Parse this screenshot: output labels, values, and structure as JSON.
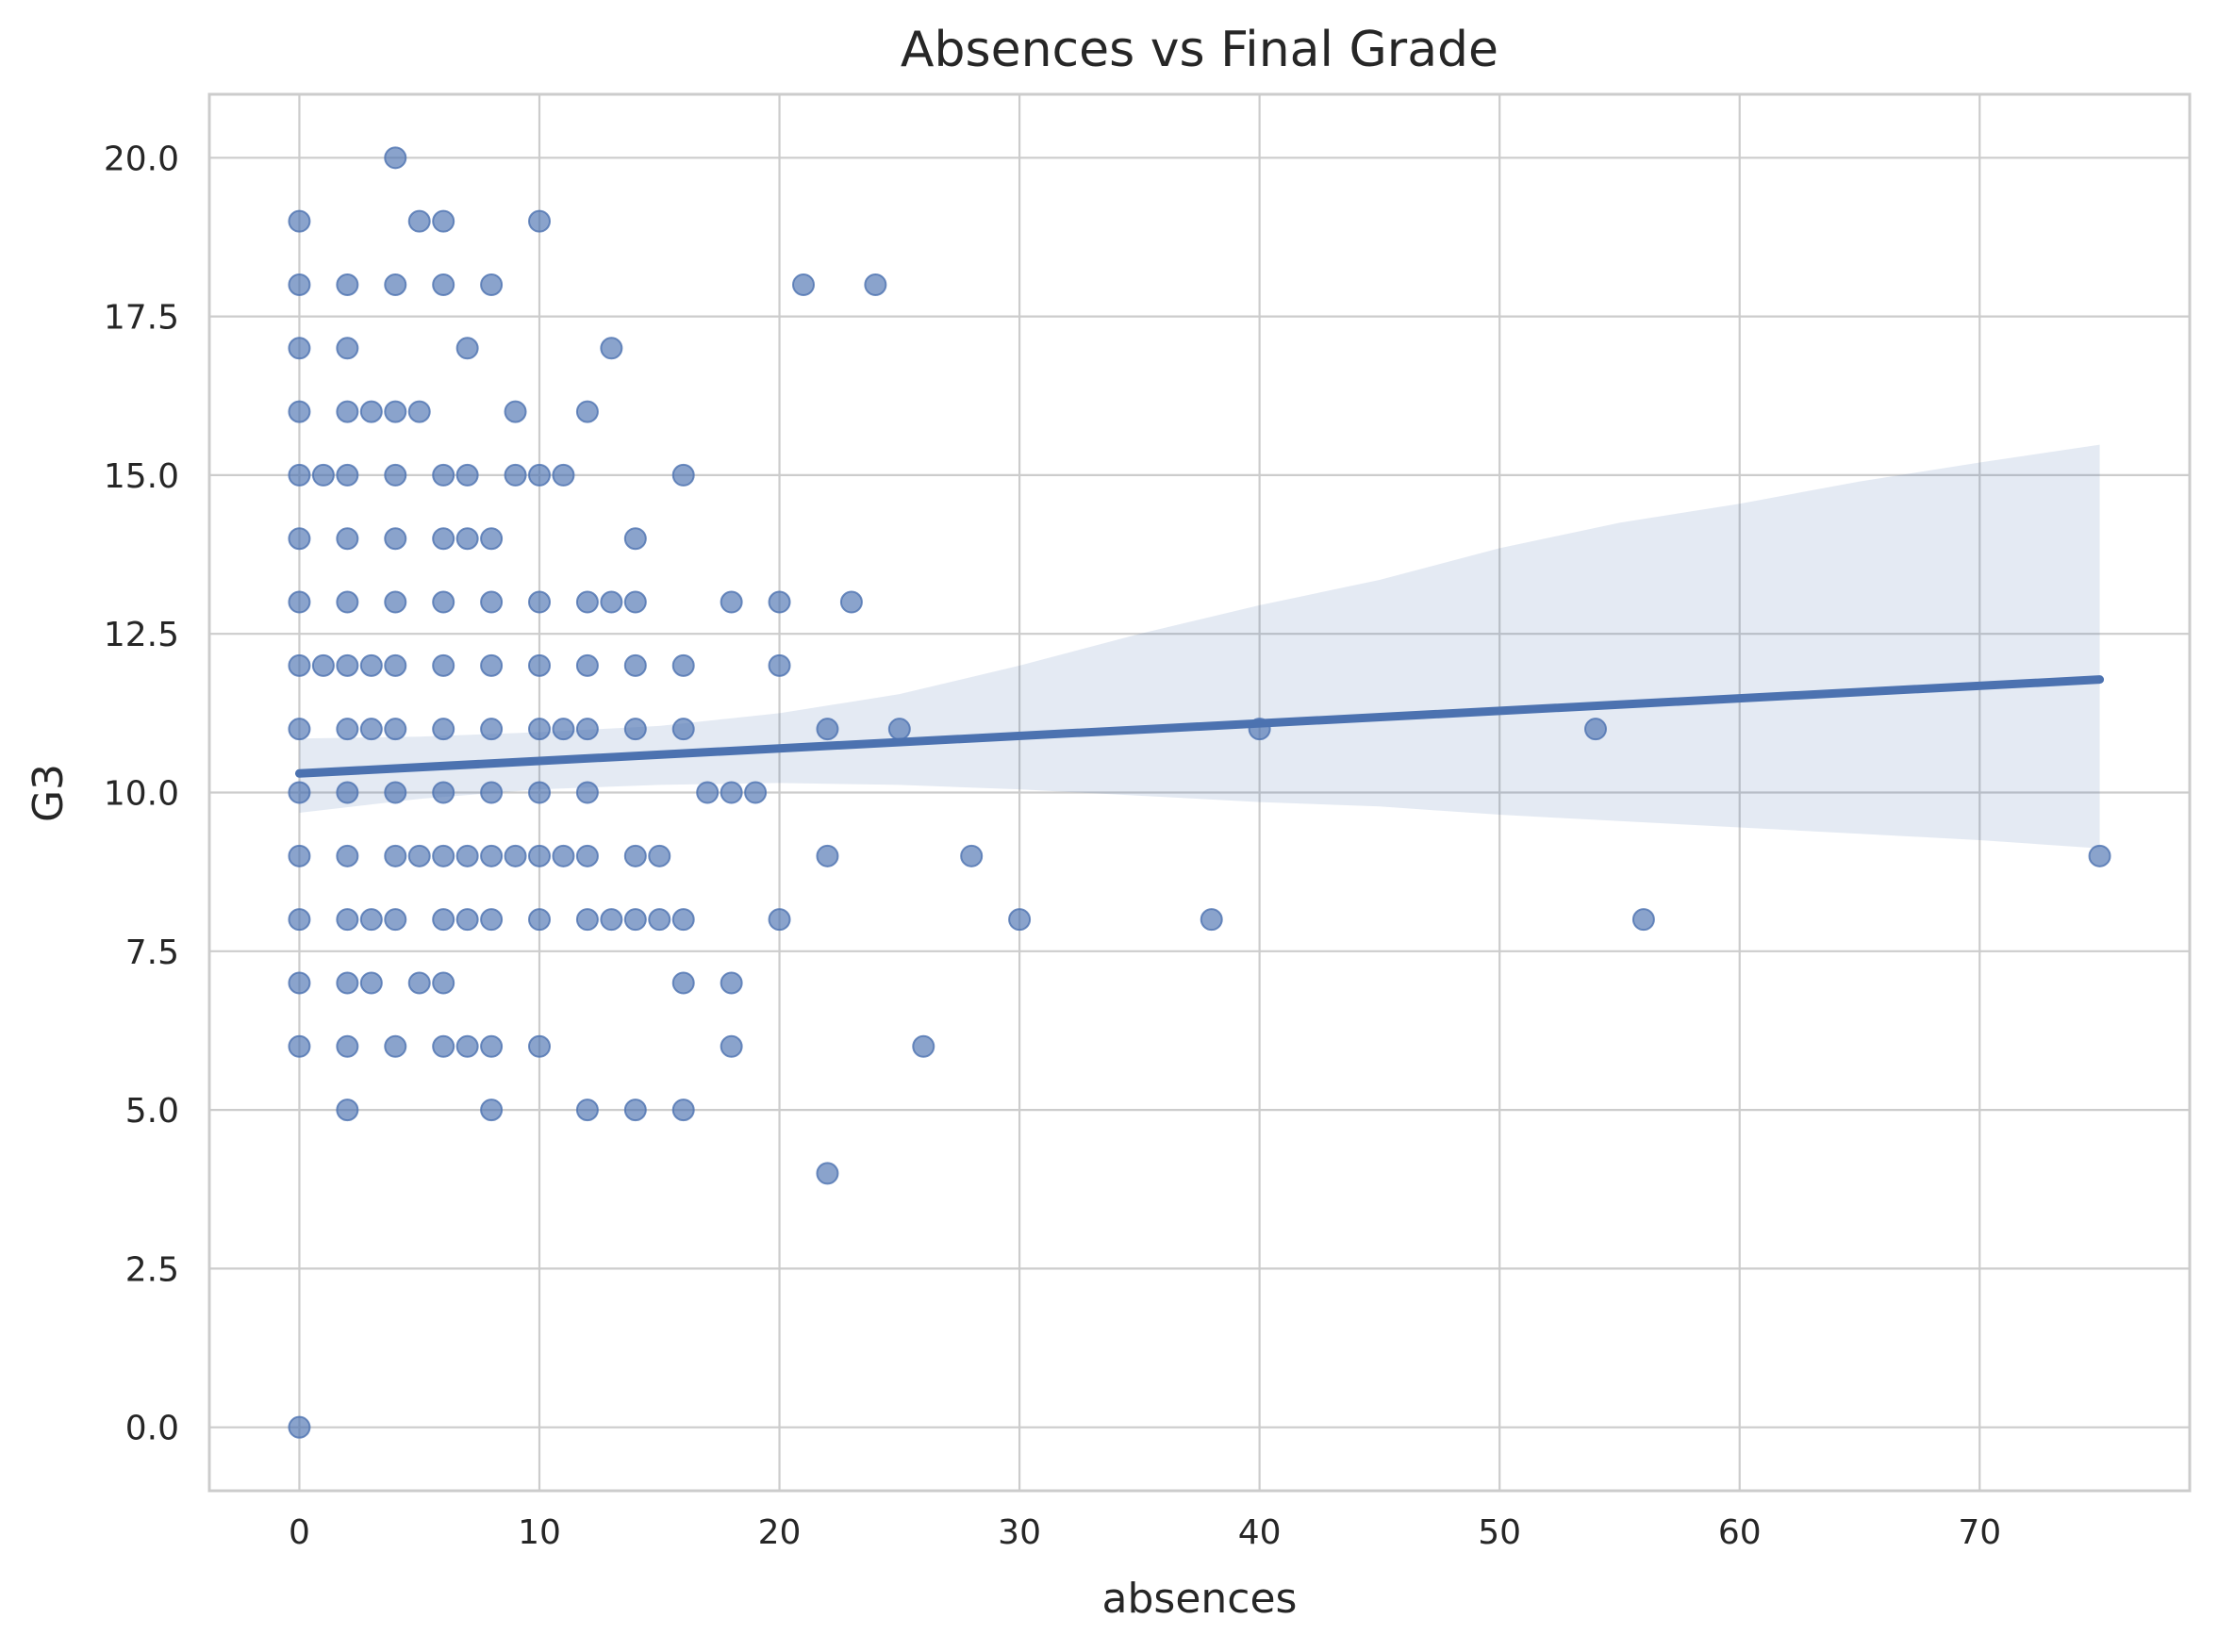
{
  "chart_data": {
    "type": "scatter",
    "title": "Absences vs Final Grade",
    "xlabel": "absences",
    "ylabel": "G3",
    "xlim": [
      -3.75,
      78.75
    ],
    "ylim": [
      -1.0,
      21.0
    ],
    "xticks": [
      0,
      10,
      20,
      30,
      40,
      50,
      60,
      70
    ],
    "xtick_labels": [
      "0",
      "10",
      "20",
      "30",
      "40",
      "50",
      "60",
      "70"
    ],
    "yticks": [
      0,
      2.5,
      5,
      7.5,
      10,
      12.5,
      15,
      17.5,
      20
    ],
    "ytick_labels": [
      "0.0",
      "2.5",
      "5.0",
      "7.5",
      "10.0",
      "12.5",
      "15.0",
      "17.5",
      "20.0"
    ],
    "grid": true,
    "colors": {
      "point": "#4c72b0",
      "line": "#4c72b0",
      "ci_band": "#4c72b0",
      "grid": "#cccccc",
      "background": "#ffffff"
    },
    "points": [
      [
        0,
        0
      ],
      [
        0,
        6
      ],
      [
        0,
        7
      ],
      [
        0,
        8
      ],
      [
        0,
        9
      ],
      [
        0,
        10
      ],
      [
        0,
        11
      ],
      [
        0,
        12
      ],
      [
        0,
        13
      ],
      [
        0,
        14
      ],
      [
        0,
        15
      ],
      [
        0,
        16
      ],
      [
        0,
        17
      ],
      [
        0,
        18
      ],
      [
        0,
        19
      ],
      [
        1,
        12
      ],
      [
        1,
        15
      ],
      [
        2,
        5
      ],
      [
        2,
        6
      ],
      [
        2,
        7
      ],
      [
        2,
        8
      ],
      [
        2,
        9
      ],
      [
        2,
        10
      ],
      [
        2,
        11
      ],
      [
        2,
        12
      ],
      [
        2,
        13
      ],
      [
        2,
        14
      ],
      [
        2,
        15
      ],
      [
        2,
        16
      ],
      [
        2,
        17
      ],
      [
        2,
        18
      ],
      [
        3,
        7
      ],
      [
        3,
        8
      ],
      [
        3,
        11
      ],
      [
        3,
        12
      ],
      [
        3,
        16
      ],
      [
        4,
        6
      ],
      [
        4,
        8
      ],
      [
        4,
        9
      ],
      [
        4,
        10
      ],
      [
        4,
        11
      ],
      [
        4,
        12
      ],
      [
        4,
        13
      ],
      [
        4,
        14
      ],
      [
        4,
        15
      ],
      [
        4,
        16
      ],
      [
        4,
        18
      ],
      [
        4,
        20
      ],
      [
        5,
        7
      ],
      [
        5,
        9
      ],
      [
        5,
        16
      ],
      [
        5,
        19
      ],
      [
        6,
        6
      ],
      [
        6,
        7
      ],
      [
        6,
        8
      ],
      [
        6,
        9
      ],
      [
        6,
        10
      ],
      [
        6,
        11
      ],
      [
        6,
        12
      ],
      [
        6,
        13
      ],
      [
        6,
        14
      ],
      [
        6,
        15
      ],
      [
        6,
        18
      ],
      [
        6,
        19
      ],
      [
        7,
        6
      ],
      [
        7,
        8
      ],
      [
        7,
        9
      ],
      [
        7,
        14
      ],
      [
        7,
        15
      ],
      [
        7,
        17
      ],
      [
        8,
        5
      ],
      [
        8,
        6
      ],
      [
        8,
        8
      ],
      [
        8,
        9
      ],
      [
        8,
        10
      ],
      [
        8,
        11
      ],
      [
        8,
        12
      ],
      [
        8,
        13
      ],
      [
        8,
        14
      ],
      [
        8,
        18
      ],
      [
        9,
        9
      ],
      [
        9,
        15
      ],
      [
        9,
        16
      ],
      [
        10,
        6
      ],
      [
        10,
        8
      ],
      [
        10,
        9
      ],
      [
        10,
        10
      ],
      [
        10,
        11
      ],
      [
        10,
        12
      ],
      [
        10,
        13
      ],
      [
        10,
        15
      ],
      [
        10,
        19
      ],
      [
        11,
        9
      ],
      [
        11,
        11
      ],
      [
        11,
        15
      ],
      [
        12,
        5
      ],
      [
        12,
        8
      ],
      [
        12,
        9
      ],
      [
        12,
        10
      ],
      [
        12,
        11
      ],
      [
        12,
        12
      ],
      [
        12,
        13
      ],
      [
        12,
        16
      ],
      [
        13,
        8
      ],
      [
        13,
        13
      ],
      [
        13,
        17
      ],
      [
        14,
        5
      ],
      [
        14,
        8
      ],
      [
        14,
        9
      ],
      [
        14,
        11
      ],
      [
        14,
        12
      ],
      [
        14,
        13
      ],
      [
        14,
        14
      ],
      [
        15,
        8
      ],
      [
        15,
        9
      ],
      [
        16,
        5
      ],
      [
        16,
        7
      ],
      [
        16,
        8
      ],
      [
        16,
        11
      ],
      [
        16,
        12
      ],
      [
        16,
        15
      ],
      [
        17,
        10
      ],
      [
        18,
        6
      ],
      [
        18,
        7
      ],
      [
        18,
        10
      ],
      [
        18,
        13
      ],
      [
        19,
        10
      ],
      [
        20,
        8
      ],
      [
        20,
        12
      ],
      [
        20,
        13
      ],
      [
        21,
        18
      ],
      [
        22,
        4
      ],
      [
        22,
        9
      ],
      [
        22,
        11
      ],
      [
        23,
        13
      ],
      [
        24,
        18
      ],
      [
        25,
        11
      ],
      [
        26,
        6
      ],
      [
        28,
        9
      ],
      [
        30,
        8
      ],
      [
        38,
        8
      ],
      [
        40,
        11
      ],
      [
        54,
        11
      ],
      [
        56,
        8
      ],
      [
        75,
        9
      ]
    ],
    "regression_line": {
      "x": [
        0,
        75
      ],
      "y": [
        10.3,
        11.78
      ]
    },
    "confidence_band": {
      "x": [
        0,
        5,
        10,
        15,
        20,
        25,
        30,
        35,
        40,
        45,
        50,
        55,
        60,
        65,
        70,
        75
      ],
      "upper": [
        10.85,
        10.88,
        10.95,
        11.05,
        11.25,
        11.55,
        12.0,
        12.5,
        12.95,
        13.35,
        13.85,
        14.25,
        14.55,
        14.9,
        15.2,
        15.48
      ],
      "lower": [
        9.68,
        9.9,
        10.05,
        10.12,
        10.15,
        10.12,
        10.05,
        9.95,
        9.85,
        9.78,
        9.65,
        9.55,
        9.45,
        9.35,
        9.25,
        9.12
      ]
    }
  }
}
